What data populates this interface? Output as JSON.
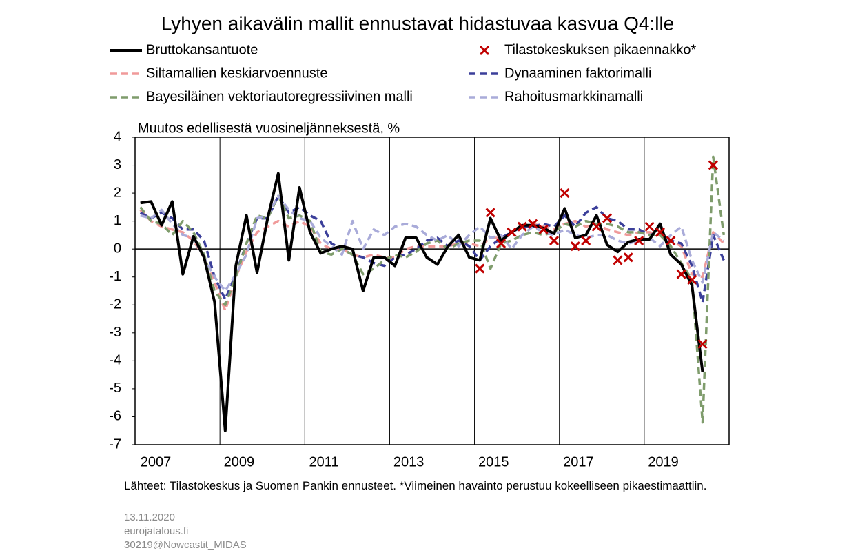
{
  "chart_data": {
    "type": "line",
    "title": "Lyhyen aikavälin mallit ennustavat hidastuvaa kasvua Q4:lle",
    "y_label": "Muutos edellisestä vuosineljänneksestä, %",
    "xlim": [
      2007,
      2021
    ],
    "xticks": [
      2007,
      2009,
      2011,
      2013,
      2015,
      2017,
      2019
    ],
    "ylim": [
      -7,
      4
    ],
    "yticks": [
      -7,
      -6,
      -5,
      -4,
      -3,
      -2,
      -1,
      0,
      1,
      2,
      3,
      4
    ],
    "grid": true,
    "x": [
      2007.125,
      2007.375,
      2007.625,
      2007.875,
      2008.125,
      2008.375,
      2008.625,
      2008.875,
      2009.125,
      2009.375,
      2009.625,
      2009.875,
      2010.125,
      2010.375,
      2010.625,
      2010.875,
      2011.125,
      2011.375,
      2011.625,
      2011.875,
      2012.125,
      2012.375,
      2012.625,
      2012.875,
      2013.125,
      2013.375,
      2013.625,
      2013.875,
      2014.125,
      2014.375,
      2014.625,
      2014.875,
      2015.125,
      2015.375,
      2015.625,
      2015.875,
      2016.125,
      2016.375,
      2016.625,
      2016.875,
      2017.125,
      2017.375,
      2017.625,
      2017.875,
      2018.125,
      2018.375,
      2018.625,
      2018.875,
      2019.125,
      2019.375,
      2019.625,
      2019.875,
      2020.125,
      2020.375,
      2020.625,
      2020.875
    ],
    "series": [
      {
        "name": "Bruttokansantuote",
        "color": "#000000",
        "style": "solid",
        "values": [
          1.65,
          1.7,
          0.85,
          1.7,
          -0.9,
          0.45,
          -0.3,
          -1.9,
          -6.5,
          -0.6,
          1.2,
          -0.85,
          1.1,
          2.7,
          -0.4,
          2.2,
          0.6,
          -0.15,
          0.0,
          0.1,
          0.0,
          -1.5,
          -0.3,
          -0.3,
          -0.6,
          0.4,
          0.4,
          -0.3,
          -0.55,
          0.1,
          0.5,
          -0.3,
          -0.4,
          1.1,
          0.3,
          0.6,
          0.85,
          0.85,
          0.75,
          0.55,
          1.45,
          0.4,
          0.5,
          1.2,
          0.15,
          -0.1,
          0.25,
          0.35,
          0.35,
          0.9,
          -0.2,
          -0.55,
          -1.3,
          -4.4,
          null,
          null
        ]
      },
      {
        "name": "Tilastokeskuksen pikaennakko*",
        "color": "#c00000",
        "style": "marker",
        "values": [
          null,
          null,
          null,
          null,
          null,
          null,
          null,
          null,
          null,
          null,
          null,
          null,
          null,
          null,
          null,
          null,
          null,
          null,
          null,
          null,
          null,
          null,
          null,
          null,
          null,
          null,
          null,
          null,
          null,
          null,
          null,
          null,
          -0.7,
          1.3,
          0.2,
          0.6,
          0.8,
          0.9,
          0.7,
          0.3,
          2.0,
          0.1,
          0.3,
          0.8,
          1.1,
          -0.4,
          -0.3,
          0.3,
          0.8,
          0.6,
          0.3,
          -0.9,
          -1.1,
          -3.4,
          3.0,
          null
        ]
      },
      {
        "name": "Siltamallien keskiarvoennuste",
        "color": "#f09a9a",
        "style": "dashed",
        "values": [
          1.4,
          1.0,
          0.8,
          0.7,
          0.6,
          0.3,
          -0.3,
          -1.2,
          -2.2,
          -1.0,
          -0.1,
          0.6,
          0.8,
          1.0,
          0.8,
          1.0,
          0.8,
          0.2,
          0.0,
          0.0,
          -0.2,
          -0.3,
          -0.2,
          -0.3,
          -0.3,
          0.0,
          0.1,
          0.1,
          0.1,
          0.1,
          0.2,
          0.2,
          0.1,
          0.4,
          0.4,
          0.6,
          0.8,
          0.9,
          0.8,
          0.7,
          0.9,
          1.0,
          0.8,
          0.9,
          0.7,
          0.6,
          0.5,
          0.6,
          0.6,
          0.5,
          0.3,
          0.1,
          -0.9,
          -1.0,
          0.6,
          0.2
        ]
      },
      {
        "name": "Dynaaminen faktorimalli",
        "color": "#3b3f9a",
        "style": "dashed",
        "values": [
          1.3,
          1.1,
          1.3,
          1.1,
          0.7,
          0.7,
          0.3,
          -1.0,
          -1.8,
          -0.9,
          0.2,
          1.1,
          1.1,
          1.9,
          1.3,
          1.5,
          1.2,
          1.0,
          0.2,
          0.0,
          -0.2,
          -0.3,
          -0.5,
          -0.6,
          -0.3,
          -0.2,
          0.0,
          0.3,
          0.4,
          0.1,
          0.3,
          0.1,
          -0.4,
          0.1,
          0.4,
          0.6,
          0.8,
          0.8,
          0.9,
          0.8,
          1.2,
          0.8,
          1.3,
          1.5,
          1.1,
          1.0,
          0.7,
          0.7,
          0.5,
          0.6,
          0.3,
          0.2,
          -0.6,
          -1.9,
          0.5,
          -0.4
        ]
      },
      {
        "name": "Bayesiläinen vektoriautoregressiivinen malli",
        "color": "#7f9c6c",
        "style": "dashed",
        "values": [
          1.5,
          1.0,
          0.9,
          0.5,
          1.0,
          0.6,
          -0.2,
          -1.5,
          -2.0,
          -1.0,
          0.2,
          1.2,
          1.1,
          1.9,
          1.1,
          1.2,
          1.0,
          -0.1,
          -0.2,
          0.0,
          -0.2,
          -0.9,
          -0.7,
          -0.4,
          -0.2,
          -0.3,
          -0.1,
          0.2,
          0.3,
          0.0,
          0.2,
          0.3,
          0.3,
          -0.7,
          0.2,
          0.3,
          0.5,
          0.6,
          0.5,
          0.6,
          0.9,
          0.8,
          1.0,
          0.9,
          0.9,
          0.8,
          0.6,
          0.6,
          0.5,
          0.5,
          0.1,
          -0.5,
          -1.1,
          -6.2,
          3.3,
          0.5
        ]
      },
      {
        "name": "Rahoitusmarkkinamalli",
        "color": "#a9abd9",
        "style": "dashed",
        "values": [
          1.2,
          1.1,
          1.4,
          0.9,
          0.5,
          0.4,
          -0.3,
          -1.0,
          -1.5,
          -0.9,
          -0.2,
          1.1,
          1.2,
          1.9,
          1.4,
          1.1,
          1.0,
          0.4,
          0.1,
          -0.2,
          1.0,
          0.0,
          0.7,
          0.5,
          0.8,
          0.9,
          0.8,
          0.5,
          0.3,
          0.5,
          0.1,
          0.5,
          0.8,
          0.4,
          0.5,
          0.0,
          0.5,
          0.8,
          0.6,
          0.5,
          0.7,
          0.5,
          0.4,
          0.5,
          0.5,
          0.3,
          0.2,
          0.3,
          0.4,
          0.1,
          0.5,
          0.8,
          -0.4,
          -1.2,
          0.6,
          0.3
        ]
      }
    ],
    "notes": [
      "Lähteet: Tilastokeskus ja Suomen Pankin ennusteet. *Viimeinen havainto perustuu kokeelliseen pikaestimaattiin.",
      "13.11.2020",
      "eurojatalous.fi",
      "30219@Nowcastit_MIDAS"
    ]
  }
}
